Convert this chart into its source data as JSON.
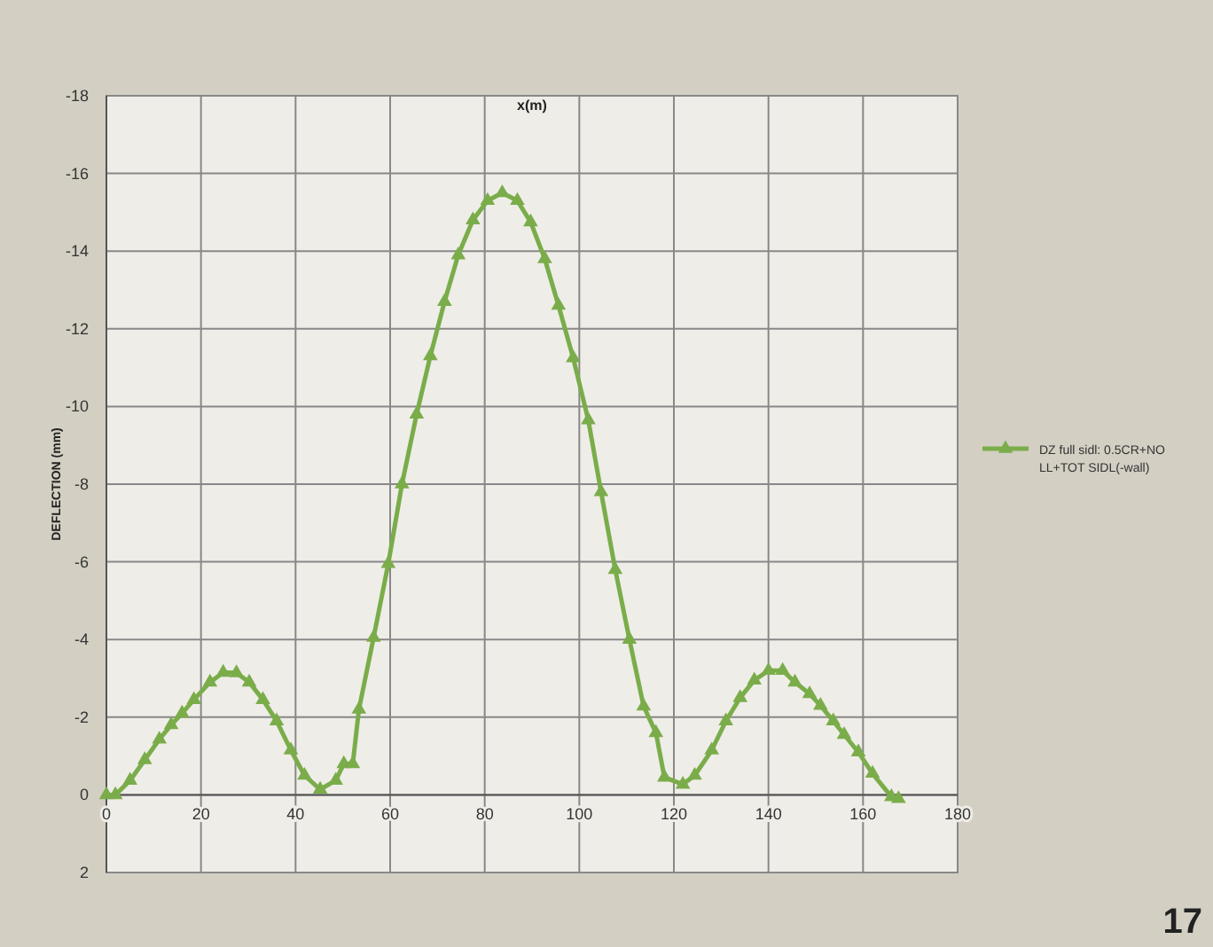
{
  "chart_data": {
    "type": "line",
    "xlabel": "x(m)",
    "ylabel": "DEFLECTION (mm)",
    "annotations": [
      "17"
    ],
    "xlim": [
      0,
      180
    ],
    "xticks": [
      0,
      20,
      40,
      60,
      80,
      100,
      120,
      140,
      160,
      180
    ],
    "ylim": [
      2,
      -18
    ],
    "yticks": [
      2,
      0,
      -2,
      -4,
      -6,
      -8,
      -10,
      -12,
      -14,
      -16,
      -18
    ],
    "grid": true,
    "legend": "right",
    "marker": "triangle",
    "line_style": "solid",
    "series": [
      {
        "name": "DZ full sidl: 0.5CR+NO LL+TOT SIDL(-wall)",
        "color": "#7aad4a",
        "x": [
          0,
          1.9,
          5,
          8.1,
          11.2,
          13.7,
          16,
          18.5,
          21.9,
          24.7,
          27.5,
          30.2,
          33.1,
          36,
          39,
          41.9,
          45.2,
          48.5,
          50.2,
          52.1,
          53.4,
          56.5,
          59.6,
          62.5,
          65.6,
          68.5,
          71.5,
          74.4,
          77.5,
          80.6,
          83.7,
          86.9,
          89.7,
          92.7,
          95.6,
          98.7,
          101.9,
          104.6,
          107.6,
          110.6,
          113.6,
          116.2,
          118,
          121.9,
          124.4,
          128,
          131,
          134,
          137,
          140,
          143,
          145.6,
          148.7,
          151,
          153.7,
          156,
          159,
          162,
          166,
          167.5
        ],
        "values": [
          0,
          0,
          -0.37,
          -0.9,
          -1.43,
          -1.8,
          -2.1,
          -2.45,
          -2.9,
          -3.15,
          -3.14,
          -2.9,
          -2.45,
          -1.9,
          -1.15,
          -0.5,
          -0.14,
          -0.37,
          -0.8,
          -0.8,
          -2.2,
          -4.05,
          -5.95,
          -8,
          -9.8,
          -11.3,
          -12.7,
          -13.9,
          -14.8,
          -15.3,
          -15.5,
          -15.3,
          -14.75,
          -13.8,
          -12.6,
          -11.25,
          -9.65,
          -7.8,
          -5.8,
          -4,
          -2.28,
          -1.6,
          -0.45,
          -0.27,
          -0.5,
          -1.15,
          -1.9,
          -2.5,
          -2.95,
          -3.2,
          -3.2,
          -2.9,
          -2.6,
          -2.3,
          -1.9,
          -1.55,
          -1.1,
          -0.55,
          0.05,
          0.1
        ]
      }
    ]
  }
}
